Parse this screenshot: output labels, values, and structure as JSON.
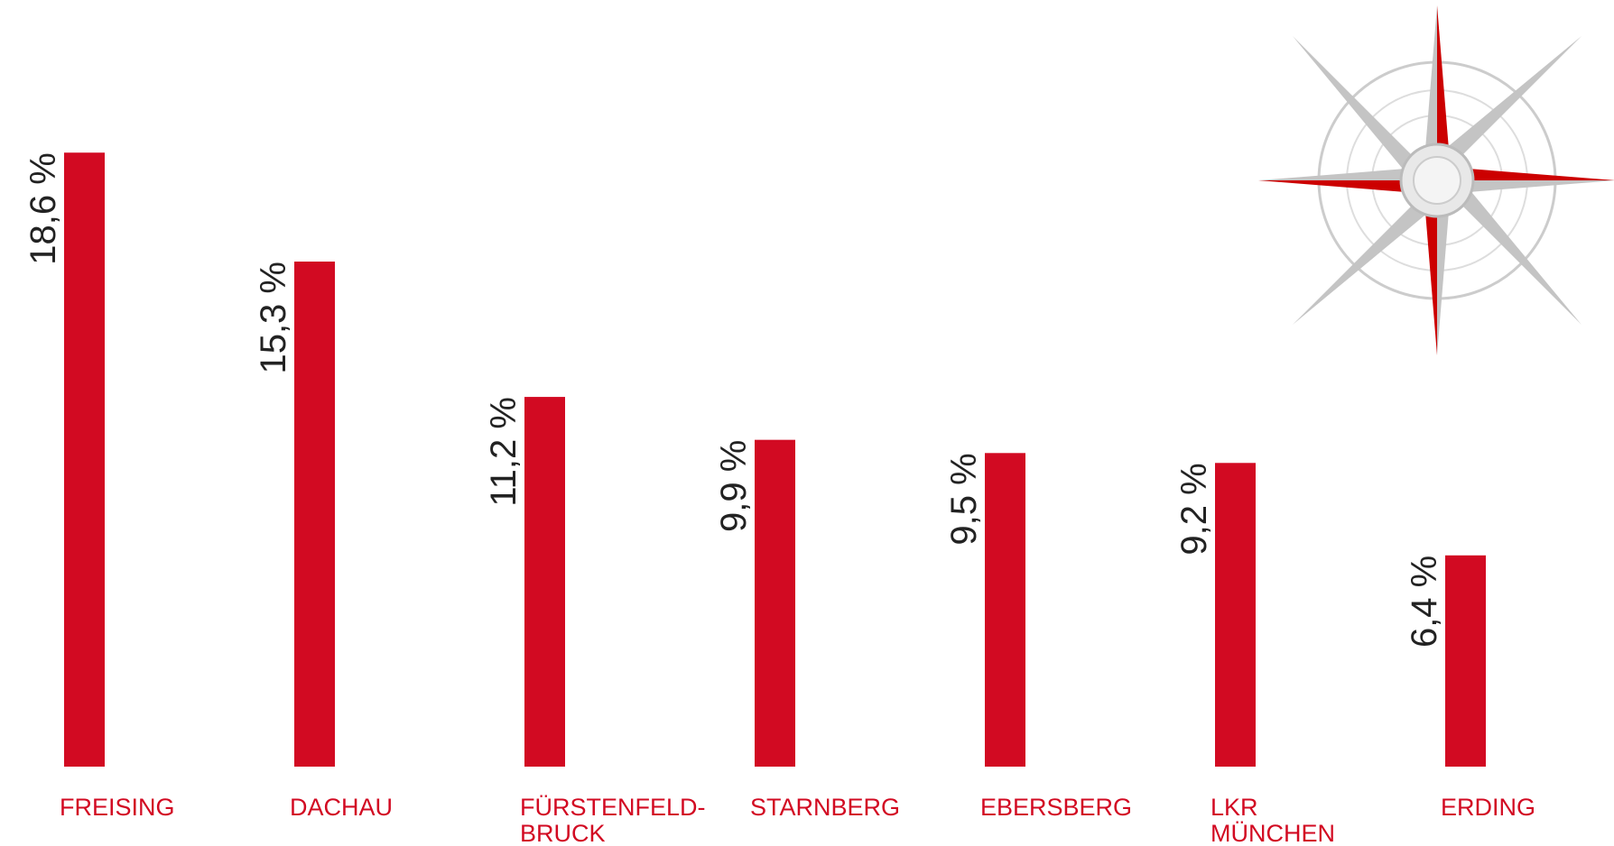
{
  "chart_data": {
    "type": "bar",
    "categories": [
      [
        "FREISING"
      ],
      [
        "DACHAU"
      ],
      [
        "FÜRSTENFELD-",
        "BRUCK"
      ],
      [
        "STARNBERG"
      ],
      [
        "EBERSBERG"
      ],
      [
        "LKR",
        "MÜNCHEN"
      ],
      [
        "ERDING"
      ]
    ],
    "values": [
      18.6,
      15.3,
      11.2,
      9.9,
      9.5,
      9.2,
      6.4
    ],
    "value_labels": [
      "18,6 %",
      "15,3 %",
      "11,2 %",
      "9,9 %",
      "9,5 %",
      "9,2 %",
      "6,4 %"
    ],
    "color": "#d20a22"
  }
}
